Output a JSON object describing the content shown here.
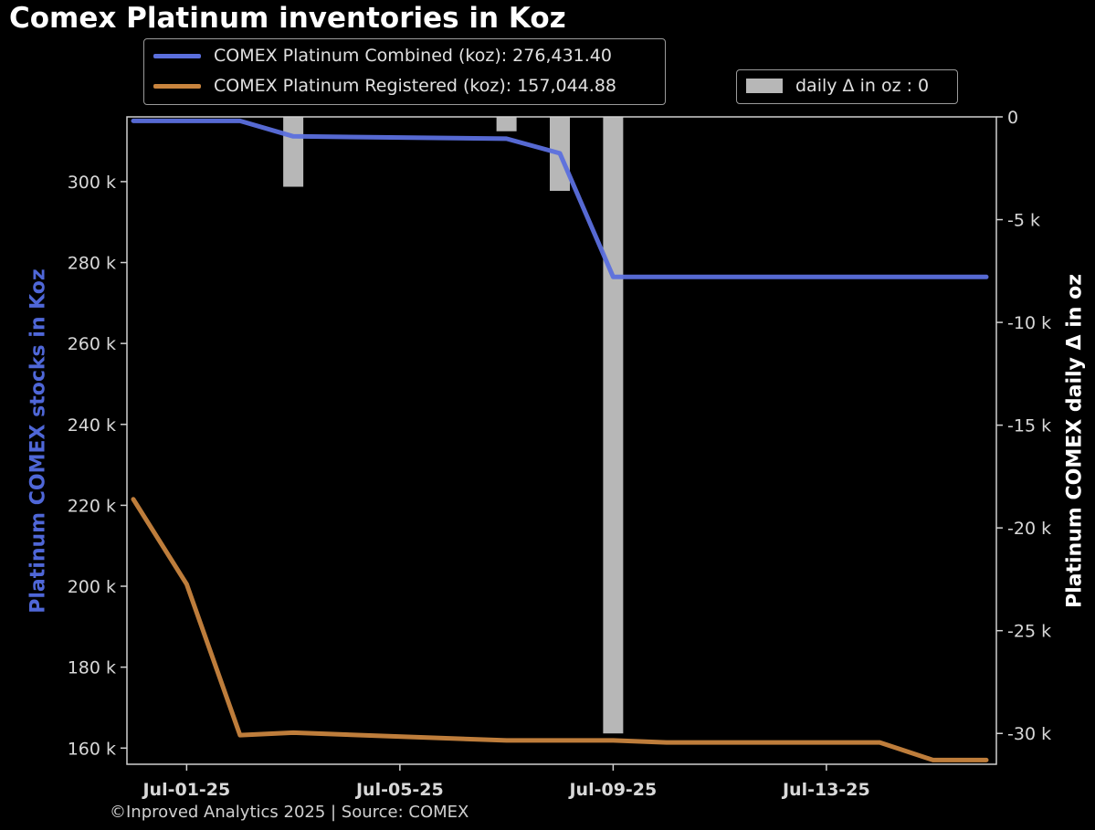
{
  "chart_data": {
    "type": "line",
    "title": "Comex Platinum inventories in Koz",
    "footer": "©Inproved Analytics 2025 | Source: COMEX",
    "x": [
      "Jun-30-25",
      "Jul-01-25",
      "Jul-02-25",
      "Jul-03-25",
      "Jul-04-25",
      "Jul-05-25",
      "Jul-06-25",
      "Jul-07-25",
      "Jul-08-25",
      "Jul-09-25",
      "Jul-10-25",
      "Jul-11-25",
      "Jul-12-25",
      "Jul-13-25",
      "Jul-14-25",
      "Jul-15-25",
      "Jul-16-25"
    ],
    "x_ticks": [
      "Jul-01-25",
      "Jul-05-25",
      "Jul-09-25",
      "Jul-13-25"
    ],
    "xlim": [
      "Jun-30-25",
      "Jul-16-25"
    ],
    "y_left": {
      "label": "Platinum COMEX stocks in Koz",
      "label_color": "#4f67d8",
      "ticks": [
        "160 k",
        "180 k",
        "200 k",
        "220 k",
        "240 k",
        "260 k",
        "280 k",
        "300 k"
      ],
      "lim": [
        156000,
        316000
      ]
    },
    "y_right": {
      "label": "Platinum COMEX daily Δ in oz",
      "ticks": [
        "0",
        "-5 k",
        "-10 k",
        "-15 k",
        "-20 k",
        "-25 k",
        "-30 k"
      ],
      "lim": [
        -31500,
        0
      ]
    },
    "series": [
      {
        "name": "COMEX Platinum Combined (koz): 276,431.40",
        "axis": "left",
        "color": "#5b6fdd",
        "x": [
          "Jun-30-25",
          "Jul-02-25",
          "Jul-03-25",
          "Jul-07-25",
          "Jul-08-25",
          "Jul-09-25",
          "Jul-16-25"
        ],
        "values": [
          315000,
          315000,
          311200,
          310600,
          307000,
          276431.4,
          276431.4
        ]
      },
      {
        "name": "COMEX Platinum Registered (koz): 157,044.88",
        "axis": "left",
        "color": "#c8843e",
        "x": [
          "Jun-30-25",
          "Jul-01-25",
          "Jul-02-25",
          "Jul-03-25",
          "Jul-07-25",
          "Jul-08-25",
          "Jul-09-25",
          "Jul-10-25",
          "Jul-14-25",
          "Jul-15-25",
          "Jul-16-25"
        ],
        "values": [
          221500,
          200500,
          163200,
          163800,
          161900,
          161900,
          161900,
          161400,
          161400,
          157044.88,
          157044.88
        ]
      },
      {
        "name": "daily Δ in oz : 0",
        "type": "bar",
        "axis": "right",
        "color": "#b7b7b7",
        "x": [
          "Jul-03-25",
          "Jul-07-25",
          "Jul-08-25",
          "Jul-09-25"
        ],
        "values": [
          -3400,
          -700,
          -3600,
          -30000
        ]
      }
    ],
    "grid": false,
    "legend": [
      "top-left",
      "top-right"
    ]
  }
}
